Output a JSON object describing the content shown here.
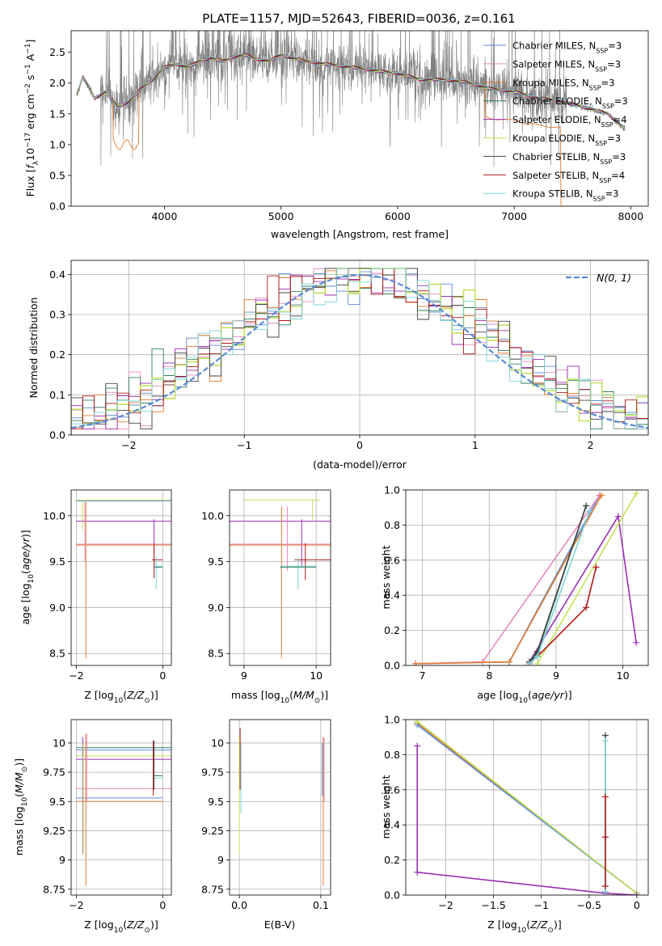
{
  "figure_title": "PLATE=1157, MJD=52643, FIBERID=0036, z=0.161",
  "colors": {
    "Chabrier MILES": "#5b8bd6",
    "Salpeter MILES": "#e58ac0",
    "Kroupa MILES": "#e07a2e",
    "Chabrier ELODIE": "#2f7f5c",
    "Salpeter ELODIE": "#9b2fb5",
    "Kroupa ELODIE": "#c4e25a",
    "Chabrier STELIB": "#444444",
    "Salpeter STELIB": "#b01818",
    "Kroupa STELIB": "#7fd3d8",
    "data": "#808080",
    "gauss": "#5b8bd6"
  },
  "chart_data": [
    {
      "id": "spectrum",
      "type": "line",
      "xlabel": "wavelength [Angstrom, rest frame]",
      "ylabel": "Flux [f_λ10^-17 erg cm^-2 s^-1 A^-1]",
      "xlim": [
        3200,
        8150
      ],
      "ylim": [
        0,
        2.85
      ],
      "xticks": [
        4000,
        5000,
        6000,
        7000,
        8000
      ],
      "yticks": [
        0.0,
        0.5,
        1.0,
        1.5,
        2.0,
        2.5
      ],
      "legend": [
        "Chabrier MILES, N_SSP=3",
        "Salpeter MILES, N_SSP=3",
        "Kroupa MILES, N_SSP=3",
        "Chabrier ELODIE, N_SSP=3",
        "Salpeter ELODIE, N_SSP=4",
        "Kroupa ELODIE, N_SSP=3",
        "Chabrier STELIB, N_SSP=3",
        "Salpeter STELIB, N_SSP=4",
        "Kroupa STELIB, N_SSP=3"
      ],
      "legend_keys": [
        "Chabrier MILES",
        "Salpeter MILES",
        "Kroupa MILES",
        "Chabrier ELODIE",
        "Salpeter ELODIE",
        "Kroupa ELODIE",
        "Chabrier STELIB",
        "Salpeter STELIB",
        "Kroupa STELIB"
      ],
      "legend_position": "right",
      "continuum": {
        "x": [
          3250,
          3300,
          3400,
          3500,
          3600,
          3700,
          3800,
          3900,
          4000,
          4100,
          4200,
          4300,
          4400,
          4500,
          4600,
          4700,
          4800,
          4900,
          5000,
          5200,
          5400,
          5600,
          5800,
          6000,
          6200,
          6400,
          6600,
          6800,
          7000,
          7200,
          7400,
          7600,
          7800,
          7950
        ],
        "y": [
          1.8,
          2.1,
          1.75,
          1.85,
          1.6,
          1.7,
          1.9,
          2.05,
          2.25,
          2.3,
          2.25,
          2.35,
          2.4,
          2.35,
          2.42,
          2.45,
          2.38,
          2.35,
          2.45,
          2.35,
          2.3,
          2.25,
          2.2,
          2.15,
          2.05,
          2.05,
          2.0,
          1.9,
          1.85,
          1.75,
          1.7,
          1.6,
          1.5,
          1.25
        ]
      },
      "noisy_region": [
        3450,
        7450
      ]
    },
    {
      "id": "residuals",
      "type": "step",
      "xlabel": "(data-model)/error",
      "ylabel": "Normed distribution",
      "xlim": [
        -2.5,
        2.5
      ],
      "ylim": [
        0,
        0.435
      ],
      "xticks": [
        -2,
        -1,
        0,
        1,
        2
      ],
      "yticks": [
        0.0,
        0.1,
        0.2,
        0.3,
        0.4
      ],
      "gauss_label": "N(0, 1)",
      "legend_position": "top-right",
      "bin_width": 0.1,
      "bin_start": -2.5
    },
    {
      "id": "age_vs_Z",
      "type": "errorbar",
      "xlabel": "Z [log10(Z/Z_sun)]",
      "ylabel": "age [log10(age/yr)]",
      "xlim": [
        -2.12,
        0.2
      ],
      "ylim": [
        8.37,
        10.28
      ],
      "xticks": [
        -2,
        0
      ],
      "yticks": [
        8.5,
        9.0,
        9.5,
        10.0
      ]
    },
    {
      "id": "age_vs_mass",
      "type": "errorbar",
      "xlabel": "mass [log10(M/M_sun)]",
      "xlim": [
        8.8,
        10.2
      ],
      "ylim": [
        8.37,
        10.28
      ],
      "xticks": [
        9,
        10
      ],
      "yticks": [
        8.5,
        9.0,
        9.5,
        10.0
      ]
    },
    {
      "id": "weight_vs_age",
      "type": "line",
      "xlabel": "age [log10(age/yr)]",
      "ylabel": "mass weight",
      "xlim": [
        6.75,
        10.38
      ],
      "ylim": [
        0,
        1.0
      ],
      "xticks": [
        7,
        8,
        9,
        10
      ],
      "yticks": [
        0.0,
        0.2,
        0.4,
        0.6,
        0.8,
        1.0
      ],
      "series": [
        {
          "name": "Chabrier MILES",
          "x": [
            6.9,
            8.3,
            9.65
          ],
          "y": [
            0.01,
            0.02,
            0.97
          ]
        },
        {
          "name": "Salpeter MILES",
          "x": [
            6.9,
            7.9,
            9.65
          ],
          "y": [
            0.01,
            0.02,
            0.97
          ]
        },
        {
          "name": "Kroupa MILES",
          "x": [
            6.9,
            8.3,
            9.68
          ],
          "y": [
            0.01,
            0.02,
            0.97
          ]
        },
        {
          "name": "Chabrier ELODIE",
          "x": [
            8.6,
            8.72,
            9.45
          ],
          "y": [
            0.01,
            0.07,
            0.91
          ]
        },
        {
          "name": "Salpeter ELODIE",
          "x": [
            8.6,
            9.93,
            10.2
          ],
          "y": [
            0.02,
            0.85,
            0.13
          ]
        },
        {
          "name": "Kroupa ELODIE",
          "x": [
            8.72,
            10.2
          ],
          "y": [
            0.01,
            0.98
          ]
        },
        {
          "name": "Chabrier STELIB",
          "x": [
            8.6,
            8.72,
            9.45
          ],
          "y": [
            0.02,
            0.08,
            0.91
          ]
        },
        {
          "name": "Salpeter STELIB",
          "x": [
            8.6,
            8.72,
            9.45,
            9.6
          ],
          "y": [
            0.01,
            0.05,
            0.33,
            0.56
          ]
        },
        {
          "name": "Kroupa STELIB",
          "x": [
            8.6,
            8.72,
            9.5
          ],
          "y": [
            0.01,
            0.05,
            0.88
          ]
        }
      ]
    },
    {
      "id": "mass_vs_Z",
      "type": "errorbar",
      "xlabel": "Z [log10(Z/Z_sun)]",
      "ylabel": "mass [log10(M/M_sun)]",
      "xlim": [
        -2.12,
        0.2
      ],
      "ylim": [
        8.7,
        10.2
      ],
      "xticks": [
        -2,
        0
      ],
      "yticks": [
        8.75,
        9.0,
        9.25,
        9.5,
        9.75,
        10.0
      ]
    },
    {
      "id": "mass_vs_ebv",
      "type": "errorbar",
      "xlabel": "E(B-V)",
      "xlim": [
        -0.012,
        0.112
      ],
      "ylim": [
        8.7,
        10.2
      ],
      "xticks": [
        0.0,
        0.1
      ],
      "yticks": [
        8.75,
        9.0,
        9.25,
        9.5,
        9.75,
        10.0
      ]
    },
    {
      "id": "weight_vs_Z",
      "type": "line",
      "xlabel": "Z [log10(Z/Z_sun)]",
      "ylabel": "mass weight",
      "xlim": [
        -2.42,
        0.12
      ],
      "ylim": [
        0,
        1.0
      ],
      "xticks": [
        -2.0,
        -1.5,
        -1.0,
        -0.5,
        0.0
      ],
      "yticks": [
        0.0,
        0.2,
        0.4,
        0.6,
        0.8,
        1.0
      ],
      "series": [
        {
          "name": "Kroupa MILES",
          "x": [
            -2.3,
            0.0
          ],
          "y": [
            0.98,
            0.01
          ]
        },
        {
          "name": "Chabrier MILES",
          "x": [
            -2.3,
            0.0
          ],
          "y": [
            0.97,
            0.01
          ]
        },
        {
          "name": "Kroupa ELODIE",
          "x": [
            -2.3,
            0.0
          ],
          "y": [
            0.99,
            0.01
          ]
        },
        {
          "name": "Salpeter ELODIE",
          "x": [
            -2.3,
            -2.3,
            -0.33,
            0.0
          ],
          "y": [
            0.85,
            0.13,
            0.01,
            0.0
          ]
        },
        {
          "name": "Chabrier STELIB",
          "x": [
            -0.33,
            -0.33
          ],
          "y": [
            0.02,
            0.91
          ]
        },
        {
          "name": "Kroupa STELIB",
          "x": [
            -0.33,
            -0.33
          ],
          "y": [
            0.02,
            0.88
          ]
        },
        {
          "name": "Salpeter STELIB",
          "x": [
            -0.33,
            -0.33,
            -0.33
          ],
          "y": [
            0.05,
            0.33,
            0.56
          ]
        }
      ]
    }
  ]
}
